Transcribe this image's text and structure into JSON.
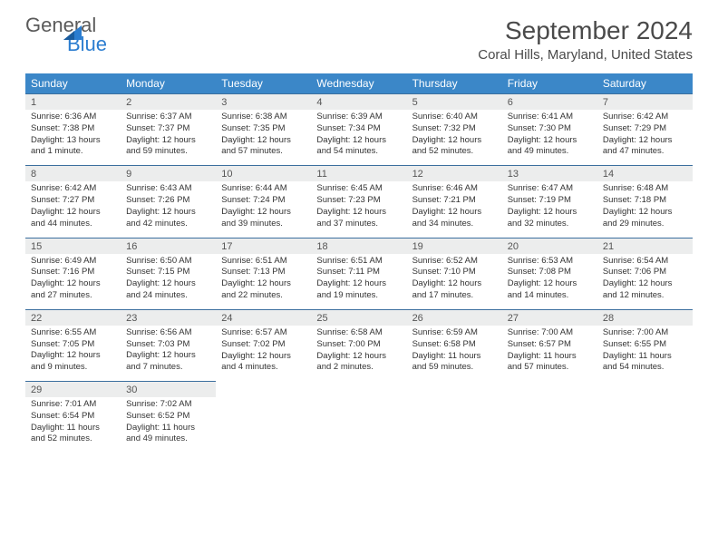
{
  "logo": {
    "line1": "General",
    "line2": "Blue"
  },
  "title": "September 2024",
  "location": "Coral Hills, Maryland, United States",
  "colors": {
    "header_bg": "#3b87c8",
    "header_text": "#ffffff",
    "daynum_bg": "#eceded",
    "cell_divider": "#3b6f9e",
    "logo_gray": "#5a5a5a",
    "logo_blue": "#2b7dd0",
    "title_color": "#4a4a4a"
  },
  "day_names": [
    "Sunday",
    "Monday",
    "Tuesday",
    "Wednesday",
    "Thursday",
    "Friday",
    "Saturday"
  ],
  "weeks": [
    [
      {
        "n": "1",
        "sr": "6:36 AM",
        "ss": "7:38 PM",
        "dl": "13 hours and 1 minute."
      },
      {
        "n": "2",
        "sr": "6:37 AM",
        "ss": "7:37 PM",
        "dl": "12 hours and 59 minutes."
      },
      {
        "n": "3",
        "sr": "6:38 AM",
        "ss": "7:35 PM",
        "dl": "12 hours and 57 minutes."
      },
      {
        "n": "4",
        "sr": "6:39 AM",
        "ss": "7:34 PM",
        "dl": "12 hours and 54 minutes."
      },
      {
        "n": "5",
        "sr": "6:40 AM",
        "ss": "7:32 PM",
        "dl": "12 hours and 52 minutes."
      },
      {
        "n": "6",
        "sr": "6:41 AM",
        "ss": "7:30 PM",
        "dl": "12 hours and 49 minutes."
      },
      {
        "n": "7",
        "sr": "6:42 AM",
        "ss": "7:29 PM",
        "dl": "12 hours and 47 minutes."
      }
    ],
    [
      {
        "n": "8",
        "sr": "6:42 AM",
        "ss": "7:27 PM",
        "dl": "12 hours and 44 minutes."
      },
      {
        "n": "9",
        "sr": "6:43 AM",
        "ss": "7:26 PM",
        "dl": "12 hours and 42 minutes."
      },
      {
        "n": "10",
        "sr": "6:44 AM",
        "ss": "7:24 PM",
        "dl": "12 hours and 39 minutes."
      },
      {
        "n": "11",
        "sr": "6:45 AM",
        "ss": "7:23 PM",
        "dl": "12 hours and 37 minutes."
      },
      {
        "n": "12",
        "sr": "6:46 AM",
        "ss": "7:21 PM",
        "dl": "12 hours and 34 minutes."
      },
      {
        "n": "13",
        "sr": "6:47 AM",
        "ss": "7:19 PM",
        "dl": "12 hours and 32 minutes."
      },
      {
        "n": "14",
        "sr": "6:48 AM",
        "ss": "7:18 PM",
        "dl": "12 hours and 29 minutes."
      }
    ],
    [
      {
        "n": "15",
        "sr": "6:49 AM",
        "ss": "7:16 PM",
        "dl": "12 hours and 27 minutes."
      },
      {
        "n": "16",
        "sr": "6:50 AM",
        "ss": "7:15 PM",
        "dl": "12 hours and 24 minutes."
      },
      {
        "n": "17",
        "sr": "6:51 AM",
        "ss": "7:13 PM",
        "dl": "12 hours and 22 minutes."
      },
      {
        "n": "18",
        "sr": "6:51 AM",
        "ss": "7:11 PM",
        "dl": "12 hours and 19 minutes."
      },
      {
        "n": "19",
        "sr": "6:52 AM",
        "ss": "7:10 PM",
        "dl": "12 hours and 17 minutes."
      },
      {
        "n": "20",
        "sr": "6:53 AM",
        "ss": "7:08 PM",
        "dl": "12 hours and 14 minutes."
      },
      {
        "n": "21",
        "sr": "6:54 AM",
        "ss": "7:06 PM",
        "dl": "12 hours and 12 minutes."
      }
    ],
    [
      {
        "n": "22",
        "sr": "6:55 AM",
        "ss": "7:05 PM",
        "dl": "12 hours and 9 minutes."
      },
      {
        "n": "23",
        "sr": "6:56 AM",
        "ss": "7:03 PM",
        "dl": "12 hours and 7 minutes."
      },
      {
        "n": "24",
        "sr": "6:57 AM",
        "ss": "7:02 PM",
        "dl": "12 hours and 4 minutes."
      },
      {
        "n": "25",
        "sr": "6:58 AM",
        "ss": "7:00 PM",
        "dl": "12 hours and 2 minutes."
      },
      {
        "n": "26",
        "sr": "6:59 AM",
        "ss": "6:58 PM",
        "dl": "11 hours and 59 minutes."
      },
      {
        "n": "27",
        "sr": "7:00 AM",
        "ss": "6:57 PM",
        "dl": "11 hours and 57 minutes."
      },
      {
        "n": "28",
        "sr": "7:00 AM",
        "ss": "6:55 PM",
        "dl": "11 hours and 54 minutes."
      }
    ],
    [
      {
        "n": "29",
        "sr": "7:01 AM",
        "ss": "6:54 PM",
        "dl": "11 hours and 52 minutes."
      },
      {
        "n": "30",
        "sr": "7:02 AM",
        "ss": "6:52 PM",
        "dl": "11 hours and 49 minutes."
      },
      null,
      null,
      null,
      null,
      null
    ]
  ],
  "labels": {
    "sunrise": "Sunrise: ",
    "sunset": "Sunset: ",
    "daylight": "Daylight: "
  }
}
